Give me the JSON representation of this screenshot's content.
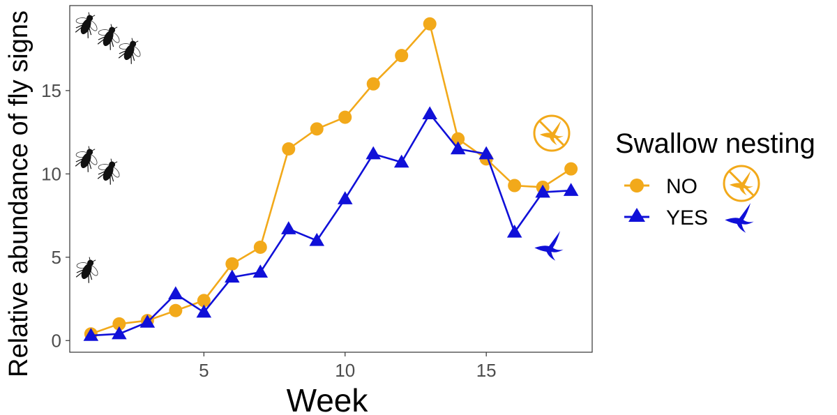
{
  "chart_data": {
    "type": "line",
    "xlabel": "Week",
    "ylabel": "Relative abundance of fly signs",
    "xlim": [
      0.25,
      18.75
    ],
    "ylim": [
      -0.7,
      20.1
    ],
    "x_ticks": [
      5,
      10,
      15
    ],
    "y_ticks": [
      0,
      5,
      10,
      15
    ],
    "grid": false,
    "legend": {
      "title": "Swallow nesting",
      "position": "right"
    },
    "x": [
      1,
      2,
      3,
      4,
      5,
      6,
      7,
      8,
      9,
      10,
      11,
      12,
      13,
      14,
      15,
      16,
      17,
      18
    ],
    "series": [
      {
        "name": "NO",
        "color": "#F2A91A",
        "marker": "circle",
        "icon": "crossed-out-swallow-icon",
        "values": [
          0.4,
          1.0,
          1.2,
          1.8,
          2.4,
          4.6,
          5.6,
          11.5,
          12.7,
          13.4,
          15.4,
          17.1,
          19.0,
          12.1,
          10.9,
          9.3,
          9.2,
          10.3
        ]
      },
      {
        "name": "YES",
        "color": "#1010D8",
        "marker": "triangle",
        "icon": "swallow-icon",
        "values": [
          0.3,
          0.4,
          1.1,
          2.8,
          1.7,
          3.8,
          4.1,
          6.7,
          6.0,
          8.5,
          11.2,
          10.7,
          13.6,
          11.5,
          11.2,
          6.5,
          8.9,
          9.0
        ]
      }
    ],
    "annotation_icons": [
      "fly-icon"
    ]
  }
}
